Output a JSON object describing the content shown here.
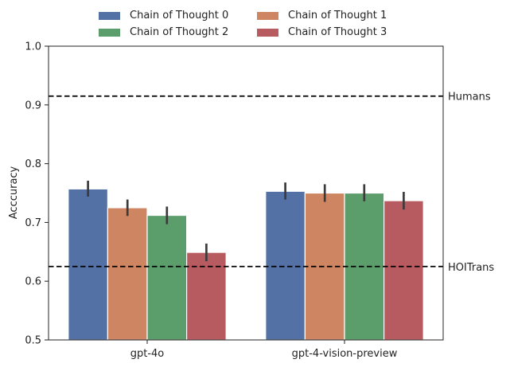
{
  "chart_data": {
    "type": "bar",
    "categories": [
      "gpt-4o",
      "gpt-4-vision-preview"
    ],
    "series": [
      {
        "name": "Chain of Thought 0",
        "color": "#5471a5",
        "values": [
          0.757,
          0.753
        ],
        "err_low": [
          0.744,
          0.739
        ],
        "err_high": [
          0.771,
          0.768
        ]
      },
      {
        "name": "Chain of Thought 1",
        "color": "#cd8661",
        "values": [
          0.725,
          0.75
        ],
        "err_low": [
          0.711,
          0.735
        ],
        "err_high": [
          0.739,
          0.765
        ]
      },
      {
        "name": "Chain of Thought 2",
        "color": "#5c9e6b",
        "values": [
          0.712,
          0.75
        ],
        "err_low": [
          0.697,
          0.736
        ],
        "err_high": [
          0.727,
          0.765
        ]
      },
      {
        "name": "Chain of Thought 3",
        "color": "#b75b60",
        "values": [
          0.649,
          0.737
        ],
        "err_low": [
          0.634,
          0.722
        ],
        "err_high": [
          0.664,
          0.752
        ]
      }
    ],
    "reference_lines": [
      {
        "label": "Humans",
        "value": 0.915
      },
      {
        "label": "HOITrans",
        "value": 0.625
      }
    ],
    "ylabel": "Acccuracy",
    "xlabel": "",
    "ylim": [
      0.5,
      1.0
    ],
    "yticks": [
      "0.5",
      "0.6",
      "0.7",
      "0.8",
      "0.9",
      "1.0"
    ],
    "legend_placement": "top-center, above plot, 2 columns",
    "grid": false
  }
}
